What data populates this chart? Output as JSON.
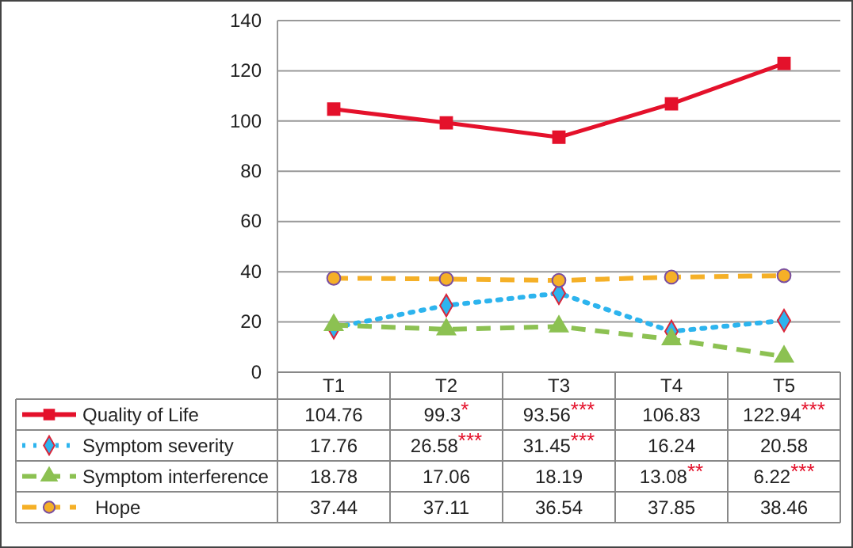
{
  "chart_data": {
    "type": "line",
    "categories": [
      "T1",
      "T2",
      "T3",
      "T4",
      "T5"
    ],
    "series": [
      {
        "name": "Quality of Life",
        "color": "#e4112b",
        "values": [
          104.76,
          99.3,
          93.56,
          106.83,
          122.94
        ],
        "value_labels": [
          "104.76",
          "99.3$^{*}$",
          "93.56$^{***}$",
          "106.83",
          "122.94$^{***}$"
        ],
        "marker": "square",
        "line_style": "solid"
      },
      {
        "name": "Symptom severity",
        "color": "#2db4ee",
        "values": [
          17.76,
          26.58,
          31.45,
          16.24,
          20.58
        ],
        "value_labels": [
          "17.76",
          "26.58$^{***}$",
          "31.45$^{***}$",
          "16.24",
          "20.58"
        ],
        "marker": "diamond",
        "line_style": "dotted"
      },
      {
        "name": "Symptom interference",
        "color": "#8cc152",
        "values": [
          18.78,
          17.06,
          18.19,
          13.08,
          6.22
        ],
        "value_labels": [
          "18.78",
          "17.06",
          "18.19",
          "13.08$^{**}$",
          "6.22$^{***}$"
        ],
        "marker": "triangle",
        "line_style": "dashed"
      },
      {
        "name": "Hope",
        "color": "#f5b027",
        "values": [
          37.44,
          37.11,
          36.54,
          37.85,
          38.46
        ],
        "value_labels": [
          "37.44",
          "37.11",
          "36.54",
          "37.85",
          "38.46"
        ],
        "marker": "circle",
        "line_style": "dashed"
      }
    ],
    "ylim": [
      0,
      140
    ],
    "yticks": [
      0,
      20,
      40,
      60,
      80,
      100,
      120,
      140
    ],
    "grid": "y",
    "legend": "bottom"
  }
}
